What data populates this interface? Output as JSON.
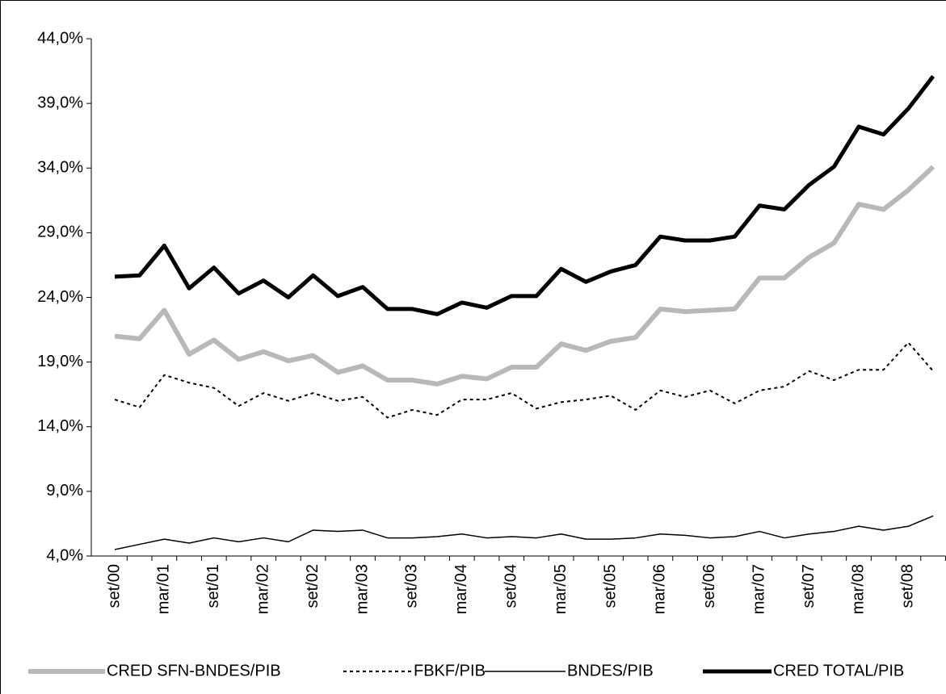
{
  "chart_data": {
    "type": "line",
    "categories": [
      "set/00",
      null,
      "mar/01",
      null,
      "set/01",
      null,
      "mar/02",
      null,
      "set/02",
      null,
      "mar/03",
      null,
      "set/03",
      null,
      "mar/04",
      null,
      "set/04",
      null,
      "mar/05",
      null,
      "set/05",
      null,
      "mar/06",
      null,
      "set/06",
      null,
      "mar/07",
      null,
      "set/07",
      null,
      "mar/08",
      null,
      "set/08",
      null
    ],
    "series": [
      {
        "name": "CRED SFN-BNDES/PIB",
        "color": "#b8b8b8",
        "width": 6,
        "dash": "none",
        "values": [
          21.0,
          20.8,
          23.0,
          19.6,
          20.7,
          19.2,
          19.8,
          19.1,
          19.5,
          18.2,
          18.7,
          17.6,
          17.6,
          17.3,
          17.9,
          17.7,
          18.6,
          18.6,
          20.4,
          19.9,
          20.6,
          20.9,
          23.1,
          22.9,
          23.0,
          23.1,
          25.5,
          25.5,
          27.1,
          28.2,
          31.2,
          30.8,
          32.3,
          34.1
        ]
      },
      {
        "name": "FBKF/PIB",
        "color": "#000000",
        "width": 2,
        "dash": "4,4",
        "values": [
          16.1,
          15.5,
          18.0,
          17.4,
          17.0,
          15.6,
          16.6,
          16.0,
          16.6,
          16.0,
          16.3,
          14.7,
          15.3,
          14.9,
          16.1,
          16.1,
          16.6,
          15.4,
          15.9,
          16.1,
          16.4,
          15.3,
          16.8,
          16.3,
          16.8,
          15.8,
          16.8,
          17.1,
          18.3,
          17.6,
          18.4,
          18.4,
          20.5,
          18.3
        ]
      },
      {
        "name": "BNDES/PIB",
        "color": "#000000",
        "width": 1.5,
        "dash": "none",
        "values": [
          4.5,
          4.9,
          5.3,
          5.0,
          5.4,
          5.1,
          5.4,
          5.1,
          6.0,
          5.9,
          6.0,
          5.4,
          5.4,
          5.5,
          5.7,
          5.4,
          5.5,
          5.4,
          5.7,
          5.3,
          5.3,
          5.4,
          5.7,
          5.6,
          5.4,
          5.5,
          5.9,
          5.4,
          5.7,
          5.9,
          6.3,
          6.0,
          6.3,
          7.1
        ]
      },
      {
        "name": "CRED TOTAL/PIB",
        "color": "#000000",
        "width": 5,
        "dash": "none",
        "values": [
          25.6,
          25.7,
          28.0,
          24.7,
          26.3,
          24.3,
          25.3,
          24.0,
          25.7,
          24.1,
          24.8,
          23.1,
          23.1,
          22.7,
          23.6,
          23.2,
          24.1,
          24.1,
          26.2,
          25.2,
          26.0,
          26.5,
          28.7,
          28.4,
          28.4,
          28.7,
          31.1,
          30.8,
          32.7,
          34.1,
          37.2,
          36.6,
          38.6,
          41.1
        ]
      }
    ],
    "ylim": [
      4,
      44
    ],
    "yticks": [
      {
        "value": 4,
        "label": "4,0%"
      },
      {
        "value": 9,
        "label": "9,0%"
      },
      {
        "value": 14,
        "label": "14,0%"
      },
      {
        "value": 19,
        "label": "19,0%"
      },
      {
        "value": 24,
        "label": "24,0%"
      },
      {
        "value": 29,
        "label": "29,0%"
      },
      {
        "value": 34,
        "label": "34,0%"
      },
      {
        "value": 39,
        "label": "39,0%"
      },
      {
        "value": 44,
        "label": "44,0%"
      }
    ],
    "legend": "bottom"
  }
}
